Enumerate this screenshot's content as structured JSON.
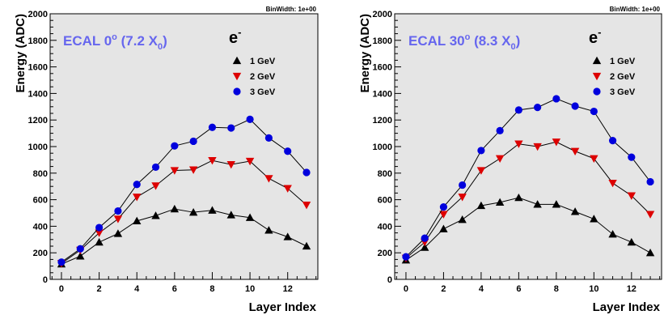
{
  "colors": {
    "frame_bg": "#e5e5e5",
    "annotation": "#6666ee",
    "series_1": "#000000",
    "series_2": "#dd0000",
    "series_3": "#0000dd"
  },
  "chart_data": [
    {
      "type": "line",
      "annotation": {
        "main": "ECAL 0",
        "sup": "o",
        "paren_open": " (7.2 X",
        "sub": "0",
        "paren_close": ")"
      },
      "particle": {
        "symbol": "e",
        "sup": "-"
      },
      "bin_width": "BinWidth: 1e+00",
      "xlabel": "Layer Index",
      "ylabel": "Energy (ADC)",
      "xlim": [
        -0.6,
        13.6
      ],
      "ylim": [
        0,
        2000
      ],
      "x_ticks": [
        0,
        2,
        4,
        6,
        8,
        10,
        12
      ],
      "y_ticks": [
        0,
        200,
        400,
        600,
        800,
        1000,
        1200,
        1400,
        1600,
        1800,
        2000
      ],
      "y_tick_labels": [
        "0",
        "200",
        "400",
        "600",
        "800",
        "1000",
        "1200",
        "1400",
        "1600",
        "1800",
        "2000"
      ],
      "legend_position": "top-right",
      "x": [
        0,
        1,
        2,
        3,
        4,
        5,
        6,
        7,
        8,
        9,
        10,
        11,
        12,
        13
      ],
      "series": [
        {
          "name": "1 GeV",
          "marker": "triangle-up",
          "values": [
            115,
            175,
            280,
            345,
            440,
            480,
            530,
            505,
            520,
            485,
            465,
            370,
            320,
            250
          ]
        },
        {
          "name": "2 GeV",
          "marker": "triangle-down",
          "values": [
            120,
            220,
            350,
            455,
            620,
            705,
            820,
            825,
            895,
            865,
            890,
            760,
            685,
            560
          ]
        },
        {
          "name": "3 GeV",
          "marker": "circle",
          "values": [
            130,
            230,
            390,
            515,
            715,
            845,
            1005,
            1040,
            1145,
            1140,
            1205,
            1065,
            965,
            805
          ]
        }
      ]
    },
    {
      "type": "line",
      "annotation": {
        "main": "ECAL 30",
        "sup": "o",
        "paren_open": " (8.3 X",
        "sub": "0",
        "paren_close": ")"
      },
      "particle": {
        "symbol": "e",
        "sup": "-"
      },
      "bin_width": "BinWidth: 1e+00",
      "xlabel": "Layer Index",
      "ylabel": "Energy (ADC)",
      "xlim": [
        -0.6,
        13.6
      ],
      "ylim": [
        0,
        2000
      ],
      "x_ticks": [
        0,
        2,
        4,
        6,
        8,
        10,
        12
      ],
      "y_ticks": [
        0,
        200,
        400,
        600,
        800,
        1000,
        1200,
        1400,
        1600,
        1800,
        2000
      ],
      "y_tick_labels": [
        "0",
        "200",
        "400",
        "600",
        "800",
        "1000",
        "1200",
        "1400",
        "1600",
        "1800",
        "2000"
      ],
      "legend_position": "top-right",
      "x": [
        0,
        1,
        2,
        3,
        4,
        5,
        6,
        7,
        8,
        9,
        10,
        11,
        12,
        13
      ],
      "series": [
        {
          "name": "1 GeV",
          "marker": "triangle-up",
          "values": [
            145,
            240,
            380,
            450,
            555,
            580,
            615,
            565,
            565,
            510,
            455,
            340,
            280,
            200
          ]
        },
        {
          "name": "2 GeV",
          "marker": "triangle-down",
          "values": [
            160,
            280,
            490,
            620,
            820,
            910,
            1020,
            1000,
            1035,
            965,
            910,
            725,
            630,
            490
          ]
        },
        {
          "name": "3 GeV",
          "marker": "circle",
          "values": [
            170,
            310,
            545,
            710,
            970,
            1120,
            1275,
            1295,
            1360,
            1305,
            1265,
            1045,
            920,
            735
          ]
        }
      ]
    }
  ]
}
